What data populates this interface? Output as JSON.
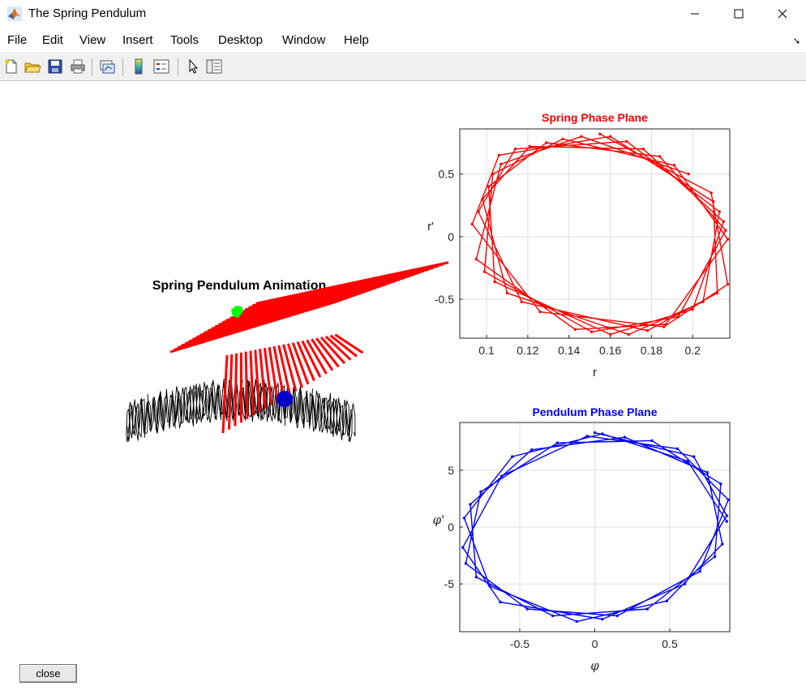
{
  "window": {
    "title": "The Spring Pendulum"
  },
  "menu": [
    "File",
    "Edit",
    "View",
    "Insert",
    "Tools",
    "Desktop",
    "Window",
    "Help"
  ],
  "toolbar": [
    "new-file-icon",
    "open-folder-icon",
    "save-icon",
    "print-icon",
    "link-plot-icon",
    "colorbar-icon",
    "legend-icon",
    "pointer-icon",
    "property-editor-icon"
  ],
  "colors": {
    "spring_color": "#ff0000",
    "pendulum_color": "#0000ff",
    "mass_color": "#0000cc",
    "pivot_color": "#00ff00",
    "trail_color": "#000000"
  },
  "animation": {
    "title": "Spring Pendulum Animation"
  },
  "chart_data": [
    {
      "type": "line",
      "title": "Spring Phase Plane",
      "xlabel": "r",
      "ylabel": "r'",
      "xlim": [
        0.087,
        0.218
      ],
      "ylim": [
        -0.81,
        0.86
      ],
      "xticks": [
        "0.1",
        "0.12",
        "0.14",
        "0.16",
        "0.18",
        "0.2"
      ],
      "yticks": [
        "0.5",
        "0",
        "-0.5"
      ],
      "grid": true,
      "series": [
        {
          "x": [
            0.155,
            0.209,
            0.217,
            0.186,
            0.126,
            0.093,
            0.106,
            0.16,
            0.21,
            0.212,
            0.178,
            0.117,
            0.096,
            0.114,
            0.168,
            0.213,
            0.205,
            0.169,
            0.11,
            0.098,
            0.121,
            0.176,
            0.215,
            0.2,
            0.16,
            0.104,
            0.101,
            0.129,
            0.184,
            0.216,
            0.193,
            0.151,
            0.099,
            0.103,
            0.137,
            0.191,
            0.217,
            0.187,
            0.143,
            0.095,
            0.107,
            0.146,
            0.198
          ],
          "y": [
            0.82,
            0.35,
            -0.38,
            -0.72,
            -0.6,
            0.1,
            0.65,
            0.8,
            0.28,
            -0.45,
            -0.75,
            -0.52,
            0.2,
            0.7,
            0.76,
            0.2,
            -0.52,
            -0.78,
            -0.45,
            0.3,
            0.72,
            0.7,
            0.12,
            -0.58,
            -0.78,
            -0.36,
            0.4,
            0.75,
            0.64,
            0.05,
            -0.64,
            -0.76,
            -0.28,
            0.5,
            0.78,
            0.57,
            -0.02,
            -0.7,
            -0.74,
            -0.18,
            0.58,
            0.8,
            0.5
          ]
        }
      ]
    },
    {
      "type": "line",
      "title": "Pendulum Phase Plane",
      "xlabel": "φ",
      "ylabel": "φ'",
      "xlim": [
        -0.9,
        0.9
      ],
      "ylim": [
        -9.2,
        9.2
      ],
      "xticks": [
        "-0.5",
        "0",
        "0.5"
      ],
      "yticks": [
        "5",
        "0",
        "-5"
      ],
      "grid": true,
      "series": [
        {
          "x": [
            0.88,
            0.62,
            0.05,
            -0.55,
            -0.87,
            -0.7,
            -0.12,
            0.48,
            0.85,
            0.75,
            0.2,
            -0.42,
            -0.83,
            -0.79,
            -0.28,
            0.35,
            0.8,
            0.84,
            0.38,
            -0.25,
            -0.76,
            -0.86,
            -0.45,
            0.15,
            0.7,
            0.89,
            0.55,
            -0.05,
            -0.62,
            -0.88,
            -0.63,
            0.05,
            0.6,
            0.88,
            0.66,
            0.0
          ],
          "y": [
            0.5,
            5.8,
            8.2,
            6.2,
            0.8,
            -5.2,
            -8.3,
            -6.5,
            -1.5,
            4.8,
            7.9,
            6.8,
            2.0,
            -4.4,
            -7.8,
            -7.2,
            -2.6,
            3.8,
            7.6,
            7.4,
            3.1,
            -3.2,
            -7.2,
            -7.8,
            -3.9,
            2.4,
            6.9,
            8.0,
            4.5,
            -1.8,
            -6.6,
            -8.1,
            -5.0,
            1.0,
            6.2,
            8.3
          ]
        }
      ]
    }
  ],
  "close_button": {
    "label": "close"
  }
}
